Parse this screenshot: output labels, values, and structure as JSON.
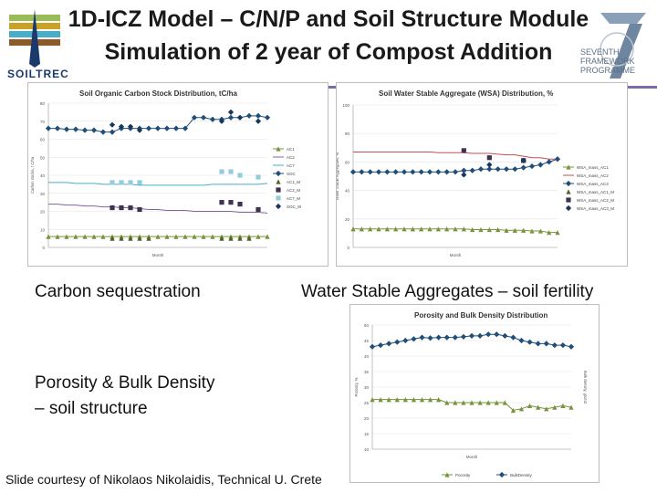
{
  "slide": {
    "title_line1": "1D-ICZ Model – C/N/P and Soil Structure Module",
    "title_line2": "Simulation of 2 year of Compost Addition",
    "logo_text": "SOILTREC",
    "fp7_text": "SEVENTH FRAMEWORK PROGRAMME",
    "caption_carbon": "Carbon sequestration",
    "caption_wsa": "Water Stable Aggregates – soil fertility",
    "caption_porosity_1": "Porosity & Bulk Density",
    "caption_porosity_2": "– soil structure",
    "credit": "Slide courtesy of Nikolaos Nikolaidis, Technical U. Crete"
  },
  "colors": {
    "accent_rule": "#7b6aa6",
    "green": "#77933c",
    "purple": "#8064a2",
    "blue": "#1f4e79",
    "cyan": "#4bacc6"
  },
  "chart_data": [
    {
      "type": "line",
      "title": "Soil Organic Carbon Stock Distribution, tC/ha",
      "xlabel": "Month",
      "ylabel": "Carbon stocks, t C/ha",
      "ylim": [
        0,
        80
      ],
      "yticks": [
        "0",
        "10",
        "20",
        "30",
        "40",
        "50",
        "60",
        "70",
        "80"
      ],
      "legend_position": "right",
      "series": [
        {
          "name": "AC1",
          "color": "#77933c",
          "marker": "triangle",
          "line": true,
          "values": [
            6,
            6,
            6,
            6,
            6,
            6,
            6,
            6,
            6,
            6,
            6,
            6,
            6,
            6,
            6,
            6,
            6,
            6,
            6,
            6,
            6,
            6,
            6,
            6,
            6
          ]
        },
        {
          "name": "AC2",
          "color": "#8064a2",
          "marker": "none",
          "line": true,
          "values": [
            24,
            24,
            23.5,
            23.5,
            23,
            23,
            22.5,
            22.5,
            22,
            22,
            21.5,
            21,
            21,
            20.5,
            20.5,
            20.5,
            20,
            20,
            20,
            20,
            20,
            19.5,
            19.5,
            19.5,
            19
          ]
        },
        {
          "name": "AC7",
          "color": "#4bacc6",
          "marker": "none",
          "line": true,
          "values": [
            36,
            36,
            36,
            35.5,
            35.5,
            35.5,
            35,
            35,
            35,
            35,
            34.5,
            34.5,
            34.5,
            34.5,
            34.5,
            34.5,
            34.5,
            34.5,
            35,
            35,
            35,
            35,
            35,
            35,
            35.5
          ]
        },
        {
          "name": "SOC",
          "color": "#1f4e79",
          "marker": "diamond",
          "line": true,
          "values": [
            66,
            66,
            65.5,
            65.5,
            65,
            65,
            64,
            64,
            66,
            66,
            66,
            66,
            66,
            66,
            66,
            66,
            72,
            72,
            71,
            71,
            72,
            72,
            73,
            73,
            72
          ]
        },
        {
          "name": "AC1_M",
          "color": "#4f6228",
          "marker": "triangle",
          "line": false,
          "x": [
            7,
            8,
            9,
            10,
            11,
            19,
            20,
            21,
            22
          ],
          "values": [
            5,
            5,
            5,
            5,
            5,
            5,
            5,
            5,
            5
          ]
        },
        {
          "name": "AC2_M",
          "color": "#403152",
          "marker": "square",
          "line": false,
          "x": [
            7,
            8,
            9,
            10,
            19,
            20,
            21,
            23
          ],
          "values": [
            22,
            22,
            22,
            21,
            25,
            25,
            24,
            21
          ]
        },
        {
          "name": "AC7_M",
          "color": "#93cddd",
          "marker": "square",
          "line": false,
          "x": [
            7,
            8,
            9,
            10,
            19,
            20,
            21,
            23
          ],
          "values": [
            36,
            36,
            36,
            36,
            42,
            42,
            40,
            39
          ]
        },
        {
          "name": "SOC_M",
          "color": "#17375e",
          "marker": "diamond",
          "line": false,
          "x": [
            7,
            8,
            9,
            10,
            19,
            20,
            21,
            23
          ],
          "values": [
            68,
            67,
            67,
            65,
            70,
            75,
            72,
            70
          ]
        }
      ]
    },
    {
      "type": "line",
      "title": "Soil Water Stable Aggregate (WSA) Distribution, %",
      "xlabel": "Month",
      "ylabel": "Water Stable Aggregates, %",
      "ylim": [
        0,
        100
      ],
      "yticks": [
        "0",
        "20",
        "40",
        "60",
        "80",
        "100"
      ],
      "legend_position": "right",
      "series": [
        {
          "name": "WSA_mass_AC1",
          "color": "#77933c",
          "marker": "triangle",
          "line": true,
          "values": [
            13,
            13,
            13,
            13,
            13,
            13,
            13,
            13,
            13,
            13,
            13,
            13,
            13,
            13,
            12.5,
            12.5,
            12.5,
            12.5,
            12,
            12,
            12,
            11.5,
            11.5,
            10.5,
            10.5
          ]
        },
        {
          "name": "WSA_mass_AC2",
          "color": "#c0504d",
          "marker": "none",
          "line": true,
          "values": [
            67,
            67,
            67,
            67,
            67,
            67,
            67,
            67,
            67,
            67,
            66.5,
            66.5,
            66.5,
            66.5,
            66,
            66,
            66,
            65.5,
            65,
            65,
            64,
            63,
            63,
            62,
            62
          ]
        },
        {
          "name": "WSA_mass_AC3",
          "color": "#1f4e79",
          "marker": "diamond",
          "line": true,
          "values": [
            53,
            53,
            53,
            53,
            53,
            53,
            53,
            53,
            53,
            53,
            53,
            53,
            53,
            54,
            54,
            55,
            55,
            55,
            55,
            55,
            56,
            57,
            58,
            60,
            62
          ]
        },
        {
          "name": "WSA_mass_AC1_M",
          "color": "#4f6228",
          "marker": "triangle",
          "line": false,
          "x": [],
          "values": []
        },
        {
          "name": "WSA_mass_AC2_M",
          "color": "#403152",
          "marker": "square",
          "line": false,
          "x": [
            13,
            16,
            20
          ],
          "values": [
            68,
            63,
            61
          ]
        },
        {
          "name": "WSA_mass_AC3_M",
          "color": "#17375e",
          "marker": "diamond",
          "line": false,
          "x": [
            13,
            16,
            20
          ],
          "values": [
            51,
            58,
            61
          ]
        }
      ]
    },
    {
      "type": "line",
      "title": "Porosity and Bulk Density Distribution",
      "xlabel": "Month",
      "ylabel": "Porosity, %",
      "y2label": "Bulk density, g/cm3",
      "ylim": [
        10,
        50
      ],
      "yticks": [
        "10",
        "15",
        "20",
        "25",
        "30",
        "35",
        "40",
        "45",
        "50"
      ],
      "legend_position": "bottom",
      "series": [
        {
          "name": "Porosity",
          "color": "#77933c",
          "marker": "triangle",
          "line": true,
          "axis": "left",
          "values": [
            26,
            26,
            26,
            26,
            26,
            26,
            26,
            26,
            26,
            25,
            25,
            25,
            25,
            25,
            25,
            25,
            25,
            22.5,
            23,
            24,
            23.5,
            23,
            23.5,
            24,
            23.5
          ]
        },
        {
          "name": "BulkDensity",
          "color": "#1f4e79",
          "marker": "diamond",
          "line": true,
          "axis": "left",
          "values": [
            43,
            43.5,
            44,
            44.5,
            45,
            45.5,
            46,
            45.8,
            46,
            46,
            46,
            46.2,
            46.5,
            46.5,
            47,
            47,
            46.5,
            46,
            45,
            44.5,
            44,
            44,
            43.5,
            43.5,
            43
          ]
        }
      ]
    }
  ]
}
